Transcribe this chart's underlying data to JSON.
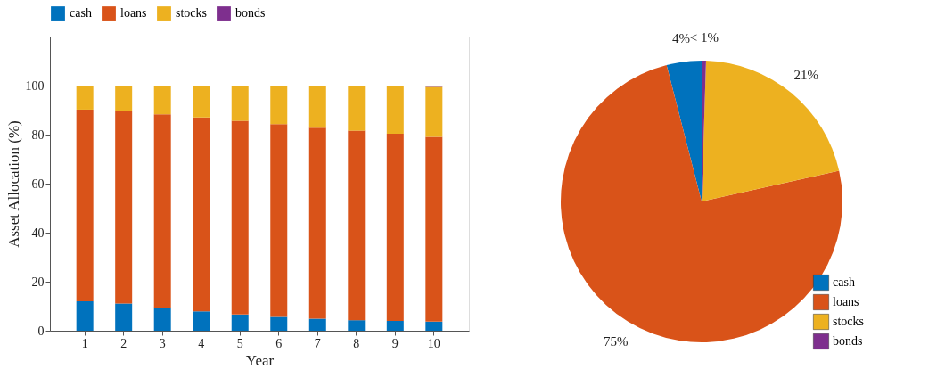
{
  "chart_data": [
    {
      "type": "bar",
      "stacked": true,
      "xlabel": "Year",
      "ylabel": "Asset Allocation (%)",
      "categories": [
        "1",
        "2",
        "3",
        "4",
        "5",
        "6",
        "7",
        "8",
        "9",
        "10"
      ],
      "ylim": [
        0,
        120
      ],
      "yticks": [
        0,
        20,
        40,
        60,
        80,
        100
      ],
      "grid": false,
      "legend": "top",
      "series": [
        {
          "name": "cash",
          "color": "#0072bd",
          "values": [
            12.0,
            11.1,
            9.5,
            7.9,
            6.6,
            5.6,
            4.9,
            4.3,
            4.0,
            3.7
          ]
        },
        {
          "name": "loans",
          "color": "#d95319",
          "values": [
            78.2,
            78.5,
            78.8,
            79.1,
            79.0,
            78.7,
            77.9,
            77.3,
            76.4,
            75.4
          ]
        },
        {
          "name": "stocks",
          "color": "#edb120",
          "values": [
            9.5,
            10.1,
            11.4,
            12.7,
            14.1,
            15.4,
            16.9,
            18.1,
            19.3,
            20.4
          ]
        },
        {
          "name": "bonds",
          "color": "#7e2f8e",
          "values": [
            0.3,
            0.3,
            0.3,
            0.3,
            0.3,
            0.3,
            0.3,
            0.3,
            0.3,
            0.5
          ]
        }
      ]
    },
    {
      "type": "pie",
      "categories": [
        "cash",
        "loans",
        "stocks",
        "bonds"
      ],
      "values": [
        4,
        74.5,
        21,
        0.5
      ],
      "value_labels": [
        "4%",
        "75%",
        "21%",
        "< 1%"
      ],
      "colors": [
        "#0072bd",
        "#d95319",
        "#edb120",
        "#7e2f8e"
      ],
      "legend": "bottom right"
    }
  ]
}
